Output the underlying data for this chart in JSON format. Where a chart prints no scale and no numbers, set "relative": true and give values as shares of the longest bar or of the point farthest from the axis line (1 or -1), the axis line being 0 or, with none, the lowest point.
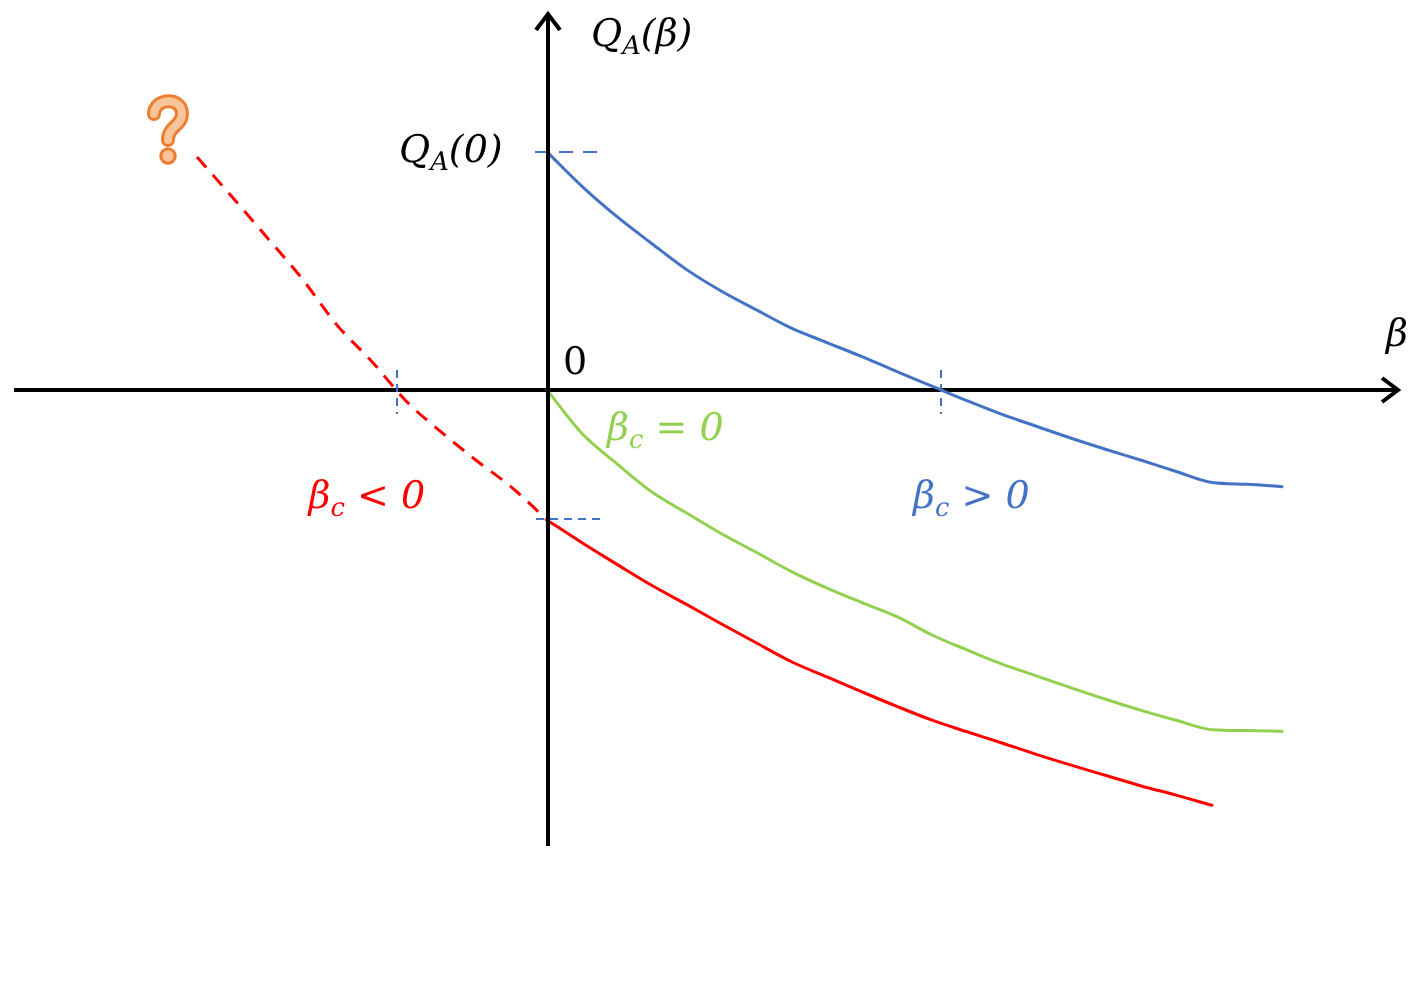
{
  "chart_data": {
    "type": "line",
    "relative": true,
    "xlabel": "β",
    "ylabel": "Q$_{A}$(β)",
    "annotations": [
      "0"
    ],
    "categories": [
      null,
      null,
      null,
      null,
      null,
      null,
      null,
      null,
      null,
      null,
      null,
      null,
      null,
      null,
      null,
      null,
      null,
      null,
      null,
      null,
      null,
      null,
      null,
      null,
      null,
      null,
      null,
      null,
      null,
      null,
      null,
      null,
      null,
      null,
      null,
      null,
      null,
      null,
      null,
      null
    ],
    "series": [
      {
        "name": "β$_{c}$ > 0",
        "color": "#4472c4",
        "values": [
          null,
          null,
          null,
          null,
          null,
          null,
          null,
          null,
          null,
          null,
          null,
          null,
          null,
          null,
          null,
          0.573,
          0.49,
          0.417,
          0.352,
          0.289,
          0.237,
          0.192,
          0.148,
          0.114,
          0.08,
          0.044,
          0.009,
          -0.026,
          -0.059,
          -0.088,
          -0.117,
          -0.144,
          -0.17,
          -0.197,
          -0.223,
          -0.227,
          -0.233,
          null,
          null,
          null
        ]
      },
      {
        "name": "β$_{c}$ = 0",
        "color": "#92d050",
        "values": [
          null,
          null,
          null,
          null,
          null,
          null,
          null,
          null,
          null,
          null,
          null,
          null,
          null,
          null,
          null,
          0,
          -0.105,
          -0.178,
          -0.246,
          -0.297,
          -0.347,
          -0.392,
          -0.438,
          -0.477,
          -0.512,
          -0.546,
          -0.59,
          -0.626,
          -0.66,
          -0.689,
          -0.718,
          -0.746,
          -0.772,
          -0.796,
          -0.818,
          -0.82,
          -0.822,
          null,
          null,
          null
        ]
      },
      {
        "name": "β$_{c}$ < 0",
        "color": "#ff0000",
        "values": [
          null,
          null,
          null,
          null,
          null,
          null,
          null,
          null,
          null,
          null,
          null,
          null,
          null,
          null,
          null,
          -0.313,
          -0.368,
          -0.42,
          -0.471,
          -0.517,
          -0.564,
          -0.61,
          -0.655,
          -0.691,
          -0.727,
          -0.762,
          -0.795,
          -0.823,
          -0.85,
          -0.878,
          -0.904,
          -0.929,
          -0.954,
          -0.976,
          -1,
          null,
          null,
          null,
          null,
          null
        ]
      },
      {
        "color": "#ff0000",
        "line_style": "dashed",
        "values": [
          null,
          null,
          null,
          null,
          null,
          0.561,
          0.465,
          0.367,
          0.268,
          0.156,
          0.068,
          -0.029,
          -0.103,
          -0.171,
          -0.235,
          -0.313,
          null,
          null,
          null,
          null,
          null,
          null,
          null,
          null,
          null,
          null,
          null,
          null,
          null,
          null,
          null,
          null,
          null,
          null,
          null,
          null,
          null,
          null,
          null,
          null
        ]
      }
    ],
    "ref_lines": [
      {
        "axis": "y",
        "value": 0.573,
        "label": "Q$_{A}$(0)",
        "color": "#4472c4",
        "line_style": "dashed"
      }
    ]
  }
}
